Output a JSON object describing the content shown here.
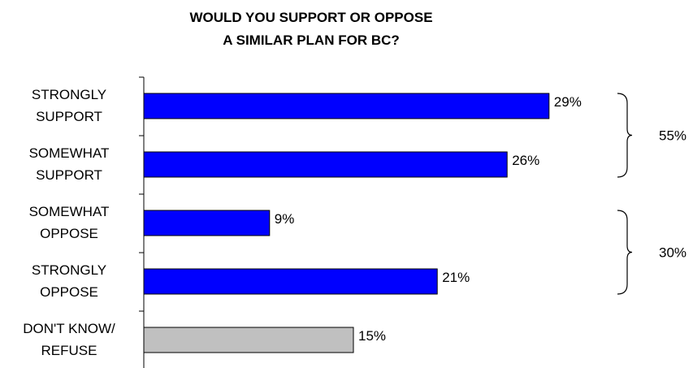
{
  "chart_data": {
    "type": "bar",
    "orientation": "horizontal",
    "title": [
      "WOULD YOU SUPPORT OR OPPOSE",
      "A SIMILAR PLAN FOR BC?"
    ],
    "categories": [
      [
        "STRONGLY",
        "SUPPORT"
      ],
      [
        "SOMEWHAT",
        "SUPPORT"
      ],
      [
        "SOMEWHAT",
        "OPPOSE"
      ],
      [
        "STRONGLY",
        "OPPOSE"
      ],
      [
        "DON'T KNOW/",
        "REFUSE"
      ]
    ],
    "values": [
      29,
      26,
      9,
      21,
      15
    ],
    "value_labels": [
      "29%",
      "26%",
      "9%",
      "21%",
      "15%"
    ],
    "bar_colors": [
      "#0000ff",
      "#0000ff",
      "#0000ff",
      "#0000ff",
      "#c0c0c0"
    ],
    "groups": [
      {
        "label": "55%",
        "from": 0,
        "to": 1
      },
      {
        "label": "30%",
        "from": 2,
        "to": 3
      }
    ],
    "xlim": [
      0,
      30
    ],
    "grid": false,
    "legend": "none"
  }
}
